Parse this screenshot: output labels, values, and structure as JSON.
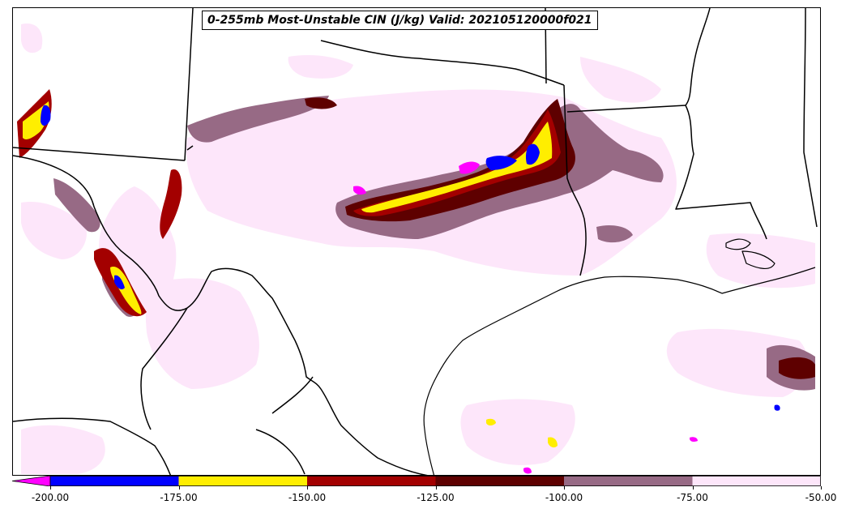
{
  "title": "0-255mb Most-Unstable CIN (J/kg) Valid: 202105120000f021",
  "colorbar": {
    "extend": "min",
    "extend_color": "#ff00ff",
    "bins": [
      {
        "from": -200,
        "to": -175,
        "color": "#0000ff"
      },
      {
        "from": -175,
        "to": -150,
        "color": "#ffee00"
      },
      {
        "from": -150,
        "to": -125,
        "color": "#a30000"
      },
      {
        "from": -125,
        "to": -100,
        "color": "#5e0000"
      },
      {
        "from": -100,
        "to": -75,
        "color": "#976a85"
      },
      {
        "from": -75,
        "to": -50,
        "color": "#fde6fa"
      }
    ],
    "tick_labels": [
      "-200.00",
      "-175.00",
      "-150.00",
      "-125.00",
      "-100.00",
      "-75.00",
      "-50.00"
    ]
  },
  "map": {
    "region": "Southern Plains / Texas / Gulf of Mexico",
    "boundaries": [
      "state",
      "country",
      "coastline"
    ]
  }
}
